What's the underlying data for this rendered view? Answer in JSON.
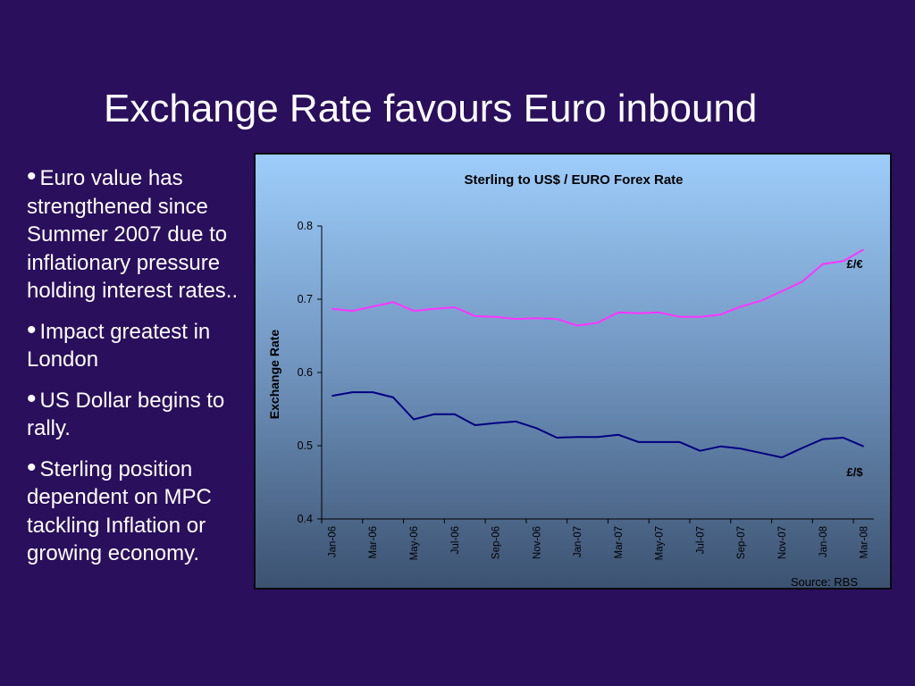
{
  "slide": {
    "title": "Exchange Rate favours Euro inbound",
    "bullets": [
      "Euro value has strengthened since Summer 2007 due to inflationary pressure holding interest rates..",
      "Impact greatest in London",
      "US Dollar begins to rally.",
      "Sterling position dependent on MPC tackling Inflation or growing economy."
    ]
  },
  "chart_data": {
    "type": "line",
    "title": "Sterling to US$ / EURO Forex Rate",
    "xlabel": "",
    "ylabel": "Exchange Rate",
    "ylim": [
      0.4,
      0.8
    ],
    "yticks": [
      0.4,
      0.5,
      0.6,
      0.7,
      0.8
    ],
    "x": [
      "Jan-06",
      "Feb-06",
      "Mar-06",
      "Apr-06",
      "May-06",
      "Jun-06",
      "Jul-06",
      "Aug-06",
      "Sep-06",
      "Oct-06",
      "Nov-06",
      "Dec-06",
      "Jan-07",
      "Feb-07",
      "Mar-07",
      "Apr-07",
      "May-07",
      "Jun-07",
      "Jul-07",
      "Aug-07",
      "Sep-07",
      "Oct-07",
      "Nov-07",
      "Dec-07",
      "Jan-08",
      "Feb-08",
      "Mar-08"
    ],
    "xtick_labels": [
      "Jan-06",
      "Mar-06",
      "May-06",
      "Jul-06",
      "Sep-06",
      "Nov-06",
      "Jan-07",
      "Mar-07",
      "May-07",
      "Jul-07",
      "Sep-07",
      "Nov-07",
      "Jan-08",
      "Mar-08"
    ],
    "grid": false,
    "series": [
      {
        "name": "£/€",
        "color": "#ff33ff",
        "values": [
          0.687,
          0.684,
          0.69,
          0.696,
          0.684,
          0.687,
          0.689,
          0.677,
          0.676,
          0.673,
          0.674,
          0.673,
          0.664,
          0.668,
          0.682,
          0.681,
          0.682,
          0.676,
          0.676,
          0.679,
          0.69,
          0.698,
          0.711,
          0.724,
          0.748,
          0.752,
          0.768
        ]
      },
      {
        "name": "£/$",
        "color": "#000080",
        "values": [
          0.568,
          0.573,
          0.573,
          0.566,
          0.536,
          0.543,
          0.543,
          0.528,
          0.531,
          0.533,
          0.524,
          0.511,
          0.512,
          0.512,
          0.515,
          0.505,
          0.505,
          0.505,
          0.493,
          0.499,
          0.496,
          0.49,
          0.484,
          0.497,
          0.509,
          0.511,
          0.499
        ]
      }
    ],
    "source": "Source: RBS"
  }
}
